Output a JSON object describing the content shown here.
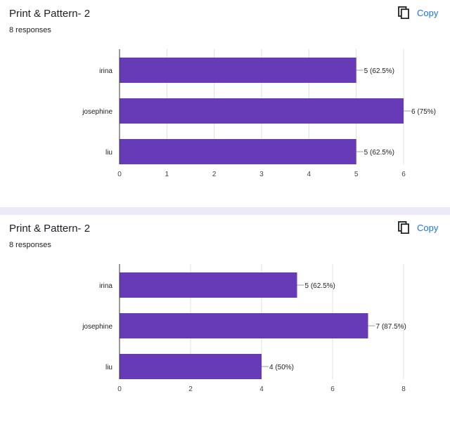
{
  "cards": [
    {
      "title": "Print & Pattern- 2",
      "subtitle": "8 responses",
      "copy_label": "Copy",
      "copy_icon": "copy-icon"
    },
    {
      "title": "Print & Pattern- 2",
      "subtitle": "8 responses",
      "copy_label": "Copy",
      "copy_icon": "copy-icon"
    }
  ],
  "chart_data": [
    {
      "type": "bar",
      "orientation": "horizontal",
      "categories": [
        "irina",
        "josephine",
        "liu"
      ],
      "values": [
        5,
        6,
        5
      ],
      "labels": [
        "5 (62.5%)",
        "6 (75%)",
        "5 (62.5%)"
      ],
      "xlim": [
        0,
        6
      ],
      "xticks": [
        0,
        1,
        2,
        3,
        4,
        5,
        6
      ],
      "grid": true,
      "bar_color": "#673ab7"
    },
    {
      "type": "bar",
      "orientation": "horizontal",
      "categories": [
        "irina",
        "josephine",
        "liu"
      ],
      "values": [
        5,
        7,
        4
      ],
      "labels": [
        "5 (62.5%)",
        "7 (87.5%)",
        "4 (50%)"
      ],
      "xlim": [
        0,
        8
      ],
      "xticks": [
        0,
        2,
        4,
        6,
        8
      ],
      "grid": true,
      "bar_color": "#673ab7"
    }
  ]
}
